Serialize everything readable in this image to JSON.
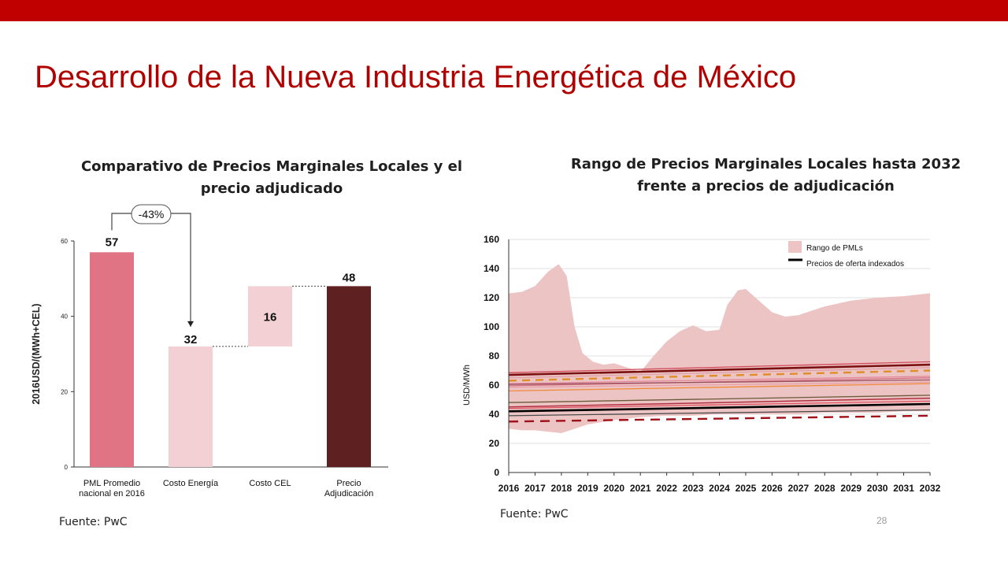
{
  "slide": {
    "title": "Desarrollo de la Nueva Industria Energética de México",
    "page_number": "28",
    "accent_color": "#c00000"
  },
  "chart_data": [
    {
      "type": "bar",
      "subtype": "waterfall",
      "title": "Comparativo de Precios Marginales Locales y el precio adjudicado",
      "ylabel": "2016USD/(MWh+CEL)",
      "xlabel": "",
      "ylim": [
        0,
        60
      ],
      "yticks": [
        0,
        20,
        40,
        60
      ],
      "categories": [
        "PML Promedio nacional en 2016",
        "Costo Energía",
        "Costo CEL",
        "Precio Adjudicación"
      ],
      "bars": [
        {
          "base": 0,
          "value": 57,
          "label": "57",
          "color": "#e07384"
        },
        {
          "base": 0,
          "value": 32,
          "label": "32",
          "color": "#f2d0d3"
        },
        {
          "base": 32,
          "value": 16,
          "label": "16",
          "color": "#f2d0d3"
        },
        {
          "base": 0,
          "value": 48,
          "label": "48",
          "color": "#5e2020"
        }
      ],
      "annotation": "-43%",
      "source": "Fuente: PwC"
    },
    {
      "type": "line",
      "title": "Rango de Precios Marginales Locales hasta 2032 frente a precios de adjudicación",
      "ylabel": "USD/MWh",
      "xlabel": "",
      "ylim": [
        0,
        160
      ],
      "yticks": [
        0,
        20,
        40,
        60,
        80,
        100,
        120,
        140,
        160
      ],
      "xlim": [
        2016,
        2032
      ],
      "x": [
        2016,
        2017,
        2018,
        2019,
        2020,
        2021,
        2022,
        2023,
        2024,
        2025,
        2026,
        2027,
        2028,
        2029,
        2030,
        2031,
        2032
      ],
      "legend": {
        "position": "top-right",
        "items": [
          "Rango de PMLs",
          "Precios de oferta indexados"
        ]
      },
      "range_band": {
        "name": "Rango de PMLs",
        "color": "#ecc4c4",
        "upper": [
          [
            2016,
            123
          ],
          [
            2016.5,
            124
          ],
          [
            2017,
            128
          ],
          [
            2017.5,
            138
          ],
          [
            2017.9,
            143
          ],
          [
            2018.2,
            135
          ],
          [
            2018.5,
            100
          ],
          [
            2018.8,
            82
          ],
          [
            2019.2,
            76
          ],
          [
            2019.6,
            74
          ],
          [
            2020,
            75
          ],
          [
            2020.5,
            72
          ],
          [
            2021,
            69
          ],
          [
            2021.5,
            80
          ],
          [
            2022,
            90
          ],
          [
            2022.5,
            97
          ],
          [
            2023,
            101
          ],
          [
            2023.5,
            97
          ],
          [
            2024,
            98
          ],
          [
            2024.3,
            115
          ],
          [
            2024.7,
            125
          ],
          [
            2025,
            126
          ],
          [
            2025.5,
            118
          ],
          [
            2026,
            110
          ],
          [
            2026.5,
            107
          ],
          [
            2027,
            108
          ],
          [
            2027.5,
            111
          ],
          [
            2028,
            114
          ],
          [
            2029,
            118
          ],
          [
            2030,
            120
          ],
          [
            2031,
            121
          ],
          [
            2032,
            123
          ]
        ],
        "lower": [
          [
            2016,
            30
          ],
          [
            2016.5,
            29
          ],
          [
            2017,
            29
          ],
          [
            2017.5,
            28
          ],
          [
            2018,
            27
          ],
          [
            2018.5,
            30
          ],
          [
            2019,
            33
          ],
          [
            2020,
            36
          ],
          [
            2021,
            38
          ],
          [
            2022,
            39
          ],
          [
            2023,
            39
          ],
          [
            2024,
            40
          ],
          [
            2025,
            40
          ],
          [
            2026,
            40
          ],
          [
            2027,
            40
          ],
          [
            2028,
            41
          ],
          [
            2029,
            41
          ],
          [
            2030,
            41
          ],
          [
            2031,
            42
          ],
          [
            2032,
            42
          ]
        ]
      },
      "series": [
        {
          "color": "#7a1010",
          "width": 2.6,
          "dash": "",
          "values": [
            [
              2016,
              67
            ],
            [
              2032,
              74
            ]
          ]
        },
        {
          "color": "#d24a5a",
          "width": 1.3,
          "dash": "",
          "values": [
            [
              2016,
              68.5
            ],
            [
              2032,
              76
            ]
          ]
        },
        {
          "color": "#e0a0a8",
          "width": 1.3,
          "dash": "",
          "values": [
            [
              2016,
              65
            ],
            [
              2032,
              72
            ]
          ]
        },
        {
          "color": "#e08e2a",
          "width": 2.4,
          "dash": "10 7",
          "values": [
            [
              2016,
              63
            ],
            [
              2032,
              70
            ]
          ]
        },
        {
          "color": "#e2889a",
          "width": 1.3,
          "dash": "",
          "values": [
            [
              2016,
              61
            ],
            [
              2032,
              66
            ]
          ]
        },
        {
          "color": "#d27080",
          "width": 1.3,
          "dash": "",
          "values": [
            [
              2016,
              59.5
            ],
            [
              2032,
              65
            ]
          ]
        },
        {
          "color": "#9a5060",
          "width": 1.3,
          "dash": "",
          "values": [
            [
              2016,
              60.5
            ],
            [
              2032,
              63.5
            ]
          ]
        },
        {
          "color": "#e8a0aa",
          "width": 1.3,
          "dash": "",
          "values": [
            [
              2016,
              58.5
            ],
            [
              2032,
              62
            ]
          ]
        },
        {
          "color": "#f08a3a",
          "width": 1.3,
          "dash": "",
          "values": [
            [
              2016,
              56
            ],
            [
              2032,
              61
            ]
          ]
        },
        {
          "color": "#6a5a3a",
          "width": 1.3,
          "dash": "",
          "values": [
            [
              2016,
              48
            ],
            [
              2032,
              53
            ]
          ]
        },
        {
          "color": "#b03040",
          "width": 1.5,
          "dash": "",
          "values": [
            [
              2016,
              45
            ],
            [
              2032,
              51
            ]
          ]
        },
        {
          "color": "#e05060",
          "width": 1.3,
          "dash": "",
          "values": [
            [
              2016,
              44
            ],
            [
              2032,
              49
            ]
          ]
        },
        {
          "color": "#000000",
          "width": 2.6,
          "dash": "",
          "values": [
            [
              2016,
              42
            ],
            [
              2032,
              47
            ]
          ]
        },
        {
          "color": "#4a4a4a",
          "width": 1.3,
          "dash": "",
          "values": [
            [
              2016,
              39
            ],
            [
              2032,
              43
            ]
          ]
        },
        {
          "color": "#a01018",
          "width": 2.4,
          "dash": "12 8",
          "values": [
            [
              2016,
              35
            ],
            [
              2032,
              39
            ]
          ]
        }
      ],
      "source": "Fuente: PwC"
    }
  ]
}
